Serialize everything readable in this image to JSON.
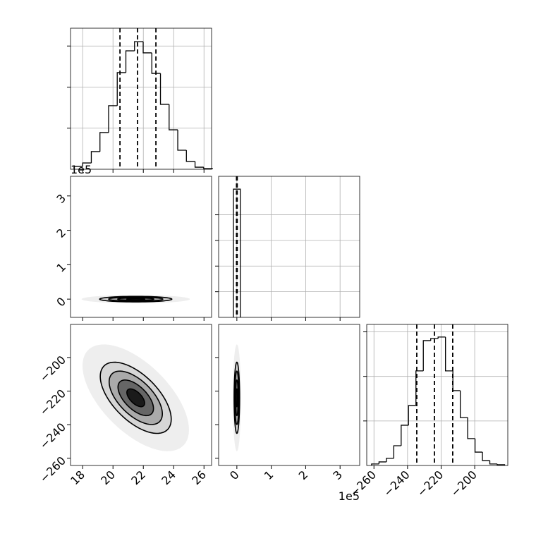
{
  "chart_data": {
    "type": "corner",
    "grid": true,
    "levels": [
      0.5,
      1,
      1.5,
      2
    ],
    "parameters": [
      {
        "lim": [
          17.2,
          26.5
        ],
        "ticks": [
          18,
          20,
          22,
          24,
          26
        ]
      },
      {
        "lim": [
          -53000,
          357000
        ],
        "ticks": [
          0,
          {
            "value": 100000,
            "label": "1"
          },
          {
            "value": 200000,
            "label": "2"
          },
          {
            "value": 300000,
            "label": "3"
          }
        ],
        "offset_label": "1e5"
      },
      {
        "lim": [
          -264.3,
          -180.3
        ],
        "ticks": [
          {
            "value": -260,
            "label": "−260"
          },
          {
            "value": -240,
            "label": "−240"
          },
          {
            "value": -220,
            "label": "−220"
          },
          {
            "value": -200,
            "label": "−200"
          }
        ]
      }
    ],
    "histograms": [
      {
        "param": 0,
        "ylim": [
          0,
          1030
        ],
        "yticks": [
          300,
          600,
          900
        ],
        "bins": [
          17.43,
          18.0,
          18.57,
          19.14,
          19.71,
          20.28,
          20.85,
          21.42,
          21.99,
          22.56,
          23.13,
          23.7,
          24.27,
          24.84,
          25.41,
          25.98,
          26.55
        ],
        "counts": [
          21,
          46,
          129,
          268,
          464,
          706,
          865,
          932,
          850,
          700,
          474,
          288,
          139,
          57,
          15,
          5
        ],
        "quantiles": [
          20.46,
          21.62,
          22.83
        ]
      },
      {
        "param": 1,
        "ylim": [
          0,
          5500
        ],
        "yticks": [
          1000,
          2000,
          3000,
          4000
        ],
        "bins": [
          -10000,
          10000
        ],
        "counts": [
          5000
        ],
        "quantiles": [
          -1000,
          0,
          1000
        ]
      },
      {
        "param": 2,
        "ylim": [
          0,
          950
        ],
        "yticks": [
          300,
          600,
          900
        ],
        "bins": [
          -261.4,
          -257.0,
          -252.6,
          -248.2,
          -243.8,
          -239.4,
          -235.0,
          -230.6,
          -226.2,
          -221.8,
          -217.4,
          -213.0,
          -208.6,
          -204.2,
          -199.8,
          -195.4,
          -191.0,
          -186.6,
          -182.2
        ],
        "counts": [
          10,
          24,
          48,
          133,
          271,
          404,
          637,
          841,
          855,
          865,
          637,
          504,
          323,
          181,
          90,
          33,
          10,
          5
        ],
        "quantiles": [
          -234.5,
          -224.0,
          -213.1
        ]
      }
    ],
    "panels": [
      {
        "x": 0,
        "y": 1,
        "mean": [
          21.5,
          0
        ],
        "std": [
          1.19,
          4000
        ],
        "rho": 0
      },
      {
        "x": 0,
        "y": 2,
        "mean": [
          21.5,
          -224
        ],
        "std": [
          1.17,
          10.6
        ],
        "rho": -0.6
      },
      {
        "x": 1,
        "y": 2,
        "mean": [
          0,
          -224
        ],
        "std": [
          4000,
          10.6
        ],
        "rho": 0
      }
    ]
  }
}
